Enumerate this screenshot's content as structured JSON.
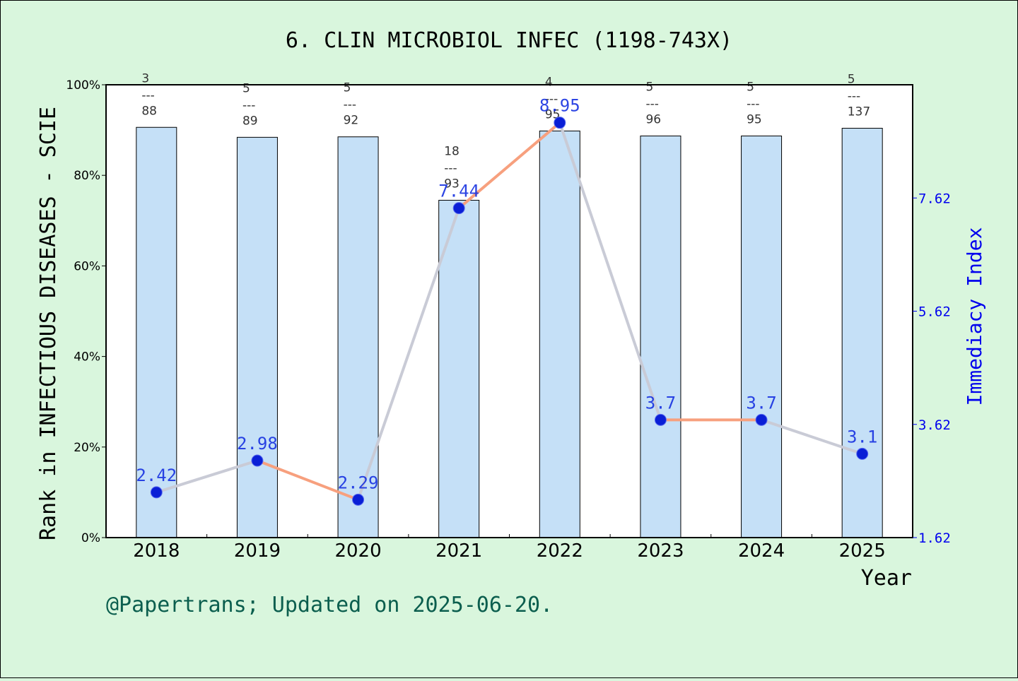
{
  "chart_data": {
    "type": "bar",
    "title": "6. CLIN MICROBIOL INFEC (1198-743X)",
    "xlabel": "Year",
    "ylabel_left": "Rank in INFECTIOUS DISEASES - SCIE",
    "ylabel_right": "Immediacy Index",
    "footer": "@Papertrans; Updated on 2025-06-20.",
    "categories": [
      "2018",
      "2019",
      "2020",
      "2021",
      "2022",
      "2023",
      "2024",
      "2025"
    ],
    "left_axis": {
      "ylim": [
        0,
        100
      ],
      "ticks": [
        0,
        20,
        40,
        60,
        80,
        100
      ],
      "tick_labels": [
        "0%",
        "20%",
        "40%",
        "60%",
        "80%",
        "100%"
      ]
    },
    "right_axis": {
      "ylim": [
        1.62,
        9.62
      ],
      "ticks": [
        1.62,
        3.62,
        5.62,
        7.62
      ],
      "tick_labels": [
        "1.62",
        "3.62",
        "5.62",
        "7.62"
      ]
    },
    "series": [
      {
        "type": "bar",
        "values": [
          90.6,
          88.4,
          88.5,
          74.5,
          89.8,
          88.7,
          88.7,
          90.4
        ],
        "rank": [
          3,
          5,
          5,
          18,
          4,
          5,
          5,
          5
        ],
        "total": [
          88,
          89,
          92,
          93,
          95,
          96,
          95,
          137
        ]
      },
      {
        "type": "line",
        "values": [
          2.42,
          2.98,
          2.29,
          7.44,
          8.95,
          3.7,
          3.7,
          3.1
        ],
        "labels": [
          "2.42",
          "2.98",
          "2.29",
          "7.44",
          "8.95",
          "3.7",
          "3.7",
          "3.1"
        ]
      }
    ],
    "colors": {
      "background": "#d9f6dd",
      "bar_fill": "#c5e0f7",
      "line": "#f7a07e",
      "marker": "#0a1fd6",
      "right_axis": "#0000ee",
      "footer": "#0b5e4e"
    },
    "legend": "none",
    "grid": false
  }
}
